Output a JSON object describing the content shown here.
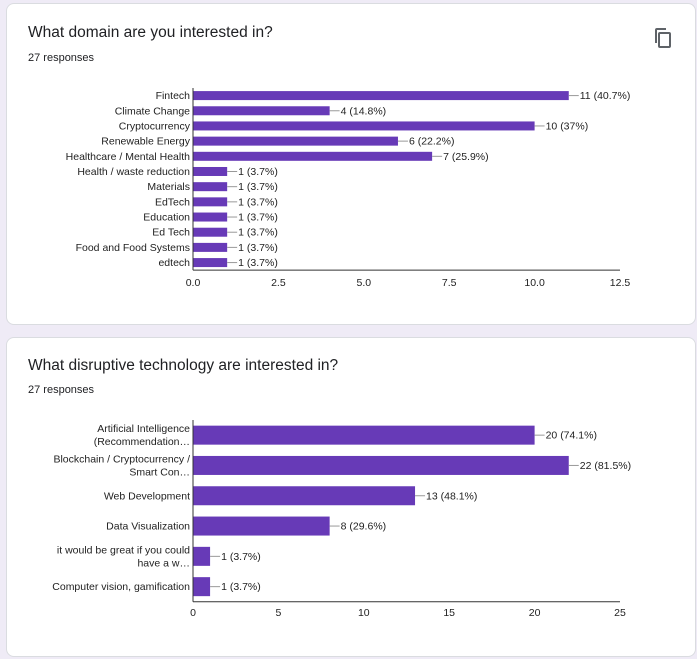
{
  "colors": {
    "bar": "#673ab7",
    "axis": "#333333",
    "text": "#222222",
    "grid": "#e0e0e0"
  },
  "icons": {
    "copy": "copy-icon"
  },
  "charts": [
    {
      "title": "What domain are you interested in?",
      "responses": "27 responses",
      "chart_data": {
        "type": "bar",
        "orientation": "horizontal",
        "categories": [
          "Fintech",
          "Climate Change",
          "Cryptocurrency",
          "Renewable Energy",
          "Healthcare / Mental Health",
          "Health / waste reduction",
          "Materials",
          "EdTech",
          "Education",
          "Ed Tech",
          "Food and Food Systems",
          "edtech"
        ],
        "values": [
          11,
          4,
          10,
          6,
          7,
          1,
          1,
          1,
          1,
          1,
          1,
          1
        ],
        "data_labels": [
          "11 (40.7%)",
          "4 (14.8%)",
          "10 (37%)",
          "6 (22.2%)",
          "7 (25.9%)",
          "1 (3.7%)",
          "1 (3.7%)",
          "1 (3.7%)",
          "1 (3.7%)",
          "1 (3.7%)",
          "1 (3.7%)",
          "1 (3.7%)"
        ],
        "xticks": [
          "0.0",
          "2.5",
          "5.0",
          "7.5",
          "10.0",
          "12.5"
        ],
        "xlim": [
          0,
          12.5
        ],
        "grid": false
      }
    },
    {
      "title": "What disruptive technology are interested in?",
      "responses": "27 responses",
      "chart_data": {
        "type": "bar",
        "orientation": "horizontal",
        "categories": [
          [
            "Artificial Intelligence",
            "(Recommendation…"
          ],
          [
            "Blockchain / Cryptocurrency /",
            "Smart Con…"
          ],
          [
            "Web Development"
          ],
          [
            "Data Visualization"
          ],
          [
            "it would be great if you could",
            "have a w…"
          ],
          [
            "Computer vision, gamification"
          ]
        ],
        "values": [
          20,
          22,
          13,
          8,
          1,
          1
        ],
        "data_labels": [
          "20 (74.1%)",
          "22 (81.5%)",
          "13 (48.1%)",
          "8 (29.6%)",
          "1 (3.7%)",
          "1 (3.7%)"
        ],
        "xticks": [
          "0",
          "5",
          "10",
          "15",
          "20",
          "25"
        ],
        "xlim": [
          0,
          25
        ],
        "grid": false
      }
    }
  ]
}
